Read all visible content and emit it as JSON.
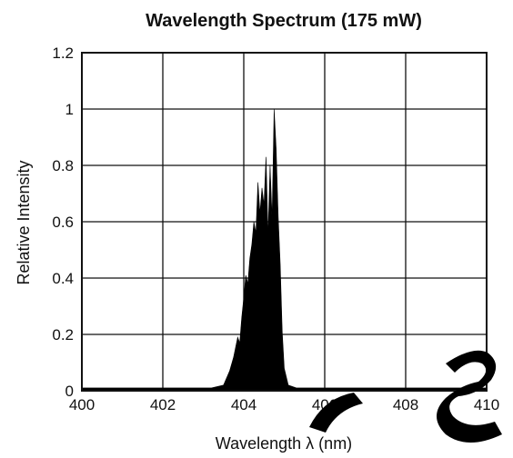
{
  "chart_data": {
    "type": "area",
    "title": "Wavelength Spectrum (175 mW)",
    "xlabel": "Wavelength  λ (nm)",
    "ylabel": "Relative Intensity",
    "xlim": [
      400,
      410
    ],
    "ylim": [
      0,
      1.2
    ],
    "xticks": [
      "400",
      "402",
      "404",
      "406",
      "408",
      "410"
    ],
    "yticks": [
      "0",
      "0.2",
      "0.4",
      "0.6",
      "0.8",
      "1",
      "1.2"
    ],
    "grid": true,
    "series": [
      {
        "x": [
          400.0,
          403.2,
          403.5,
          403.65,
          403.75,
          403.85,
          403.9,
          403.95,
          404.0,
          404.05,
          404.1,
          404.15,
          404.2,
          404.25,
          404.3,
          404.35,
          404.4,
          404.45,
          404.5,
          404.55,
          404.6,
          404.65,
          404.7,
          404.75,
          404.8,
          404.85,
          404.9,
          404.95,
          405.0,
          405.1,
          405.3,
          410.0
        ],
        "y": [
          0.01,
          0.01,
          0.02,
          0.07,
          0.12,
          0.19,
          0.17,
          0.26,
          0.33,
          0.41,
          0.38,
          0.47,
          0.52,
          0.6,
          0.56,
          0.74,
          0.63,
          0.72,
          0.66,
          0.83,
          0.55,
          0.8,
          0.61,
          1.0,
          0.86,
          0.62,
          0.45,
          0.21,
          0.08,
          0.02,
          0.01,
          0.01
        ]
      }
    ]
  }
}
